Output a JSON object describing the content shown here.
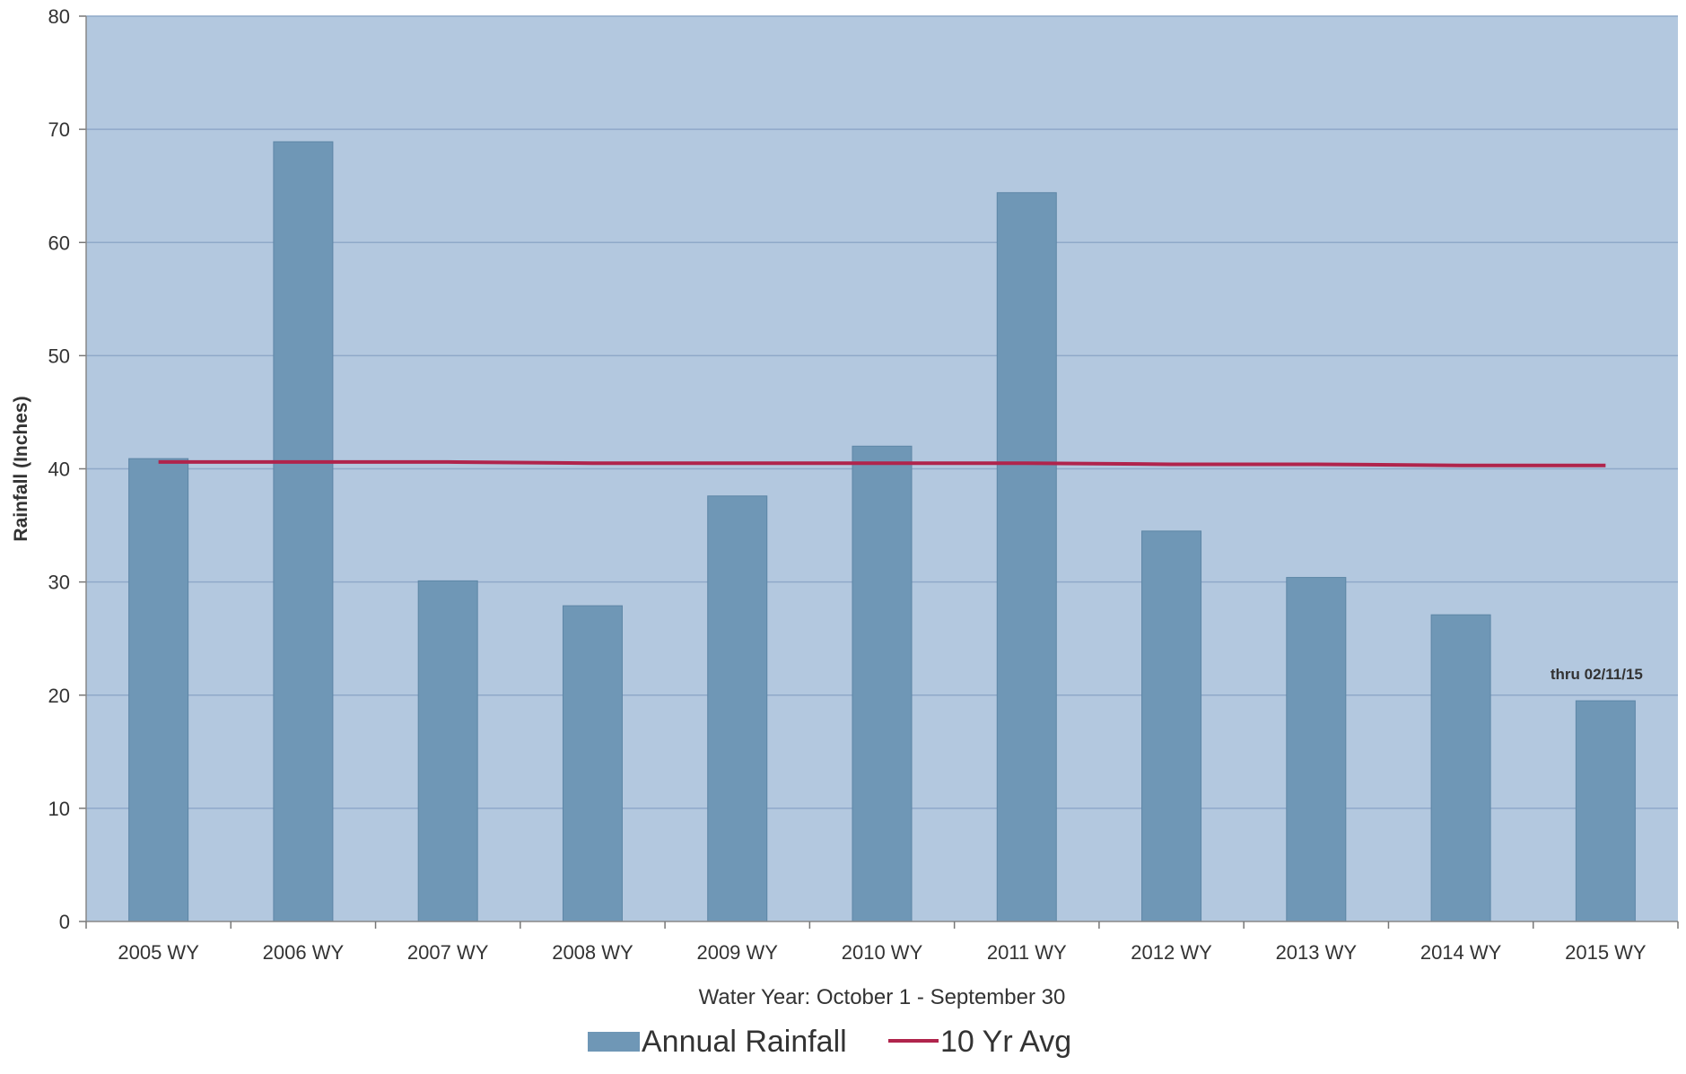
{
  "chart_data": {
    "type": "bar",
    "categories": [
      "2005 WY",
      "2006 WY",
      "2007 WY",
      "2008 WY",
      "2009 WY",
      "2010 WY",
      "2011 WY",
      "2012 WY",
      "2013 WY",
      "2014 WY",
      "2015 WY"
    ],
    "series": [
      {
        "name": "Annual Rainfall",
        "type": "bar",
        "color": "#6f97b6",
        "values": [
          40.9,
          68.9,
          30.1,
          27.9,
          37.6,
          42.0,
          64.4,
          34.5,
          30.4,
          27.1,
          19.5
        ]
      },
      {
        "name": "10 Yr Avg",
        "type": "line",
        "color": "#b0244c",
        "values": [
          40.6,
          40.6,
          40.6,
          40.5,
          40.5,
          40.5,
          40.5,
          40.4,
          40.4,
          40.3,
          40.3
        ]
      }
    ],
    "xlabel": "Water Year: October 1 - September 30",
    "ylabel": "Rainfall (Inches)",
    "ylim": [
      0,
      80
    ],
    "yticks": [
      0,
      10,
      20,
      30,
      40,
      50,
      60,
      70,
      80
    ],
    "grid": true,
    "legend_position": "bottom",
    "annotation": {
      "category": "2015 WY",
      "text": "thru 02/11/15"
    },
    "plot_background": "#b3c8df",
    "gridline_color": "#8fa9c9"
  }
}
